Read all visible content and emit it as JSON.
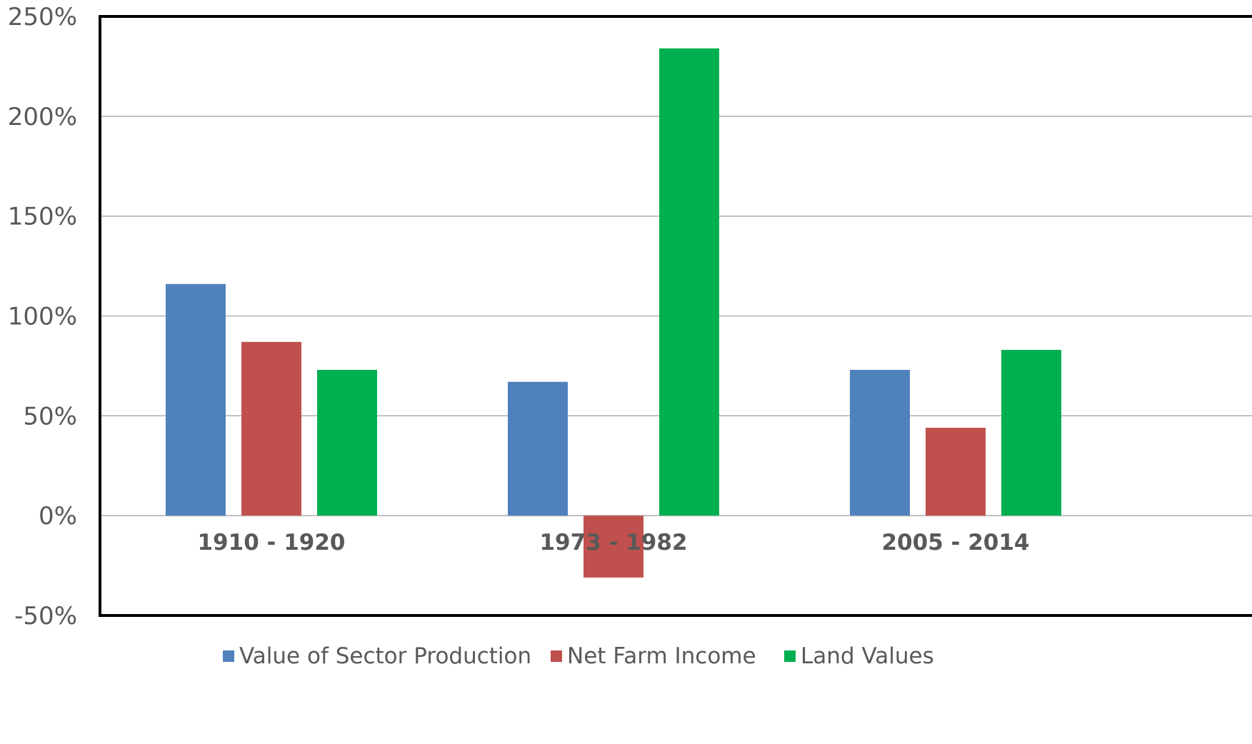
{
  "chart_data": {
    "type": "bar",
    "categories": [
      "1910 - 1920",
      "1973 - 1982",
      "2005 - 2014"
    ],
    "series": [
      {
        "name": "Value of Sector Production",
        "values": [
          116,
          67,
          73
        ],
        "color": "#4F81BD"
      },
      {
        "name": "Net Farm Income",
        "values": [
          87,
          -31,
          44
        ],
        "color": "#C0504D"
      },
      {
        "name": "Land Values",
        "values": [
          73,
          234,
          83
        ],
        "color": "#00B050"
      }
    ],
    "ylim": [
      -50,
      250
    ],
    "yticks": [
      -50,
      0,
      50,
      100,
      150,
      200,
      250
    ],
    "ytick_labels": [
      "-50%",
      "0%",
      "50%",
      "100%",
      "150%",
      "200%",
      "250%"
    ],
    "grid": true,
    "legend_position": "bottom"
  }
}
